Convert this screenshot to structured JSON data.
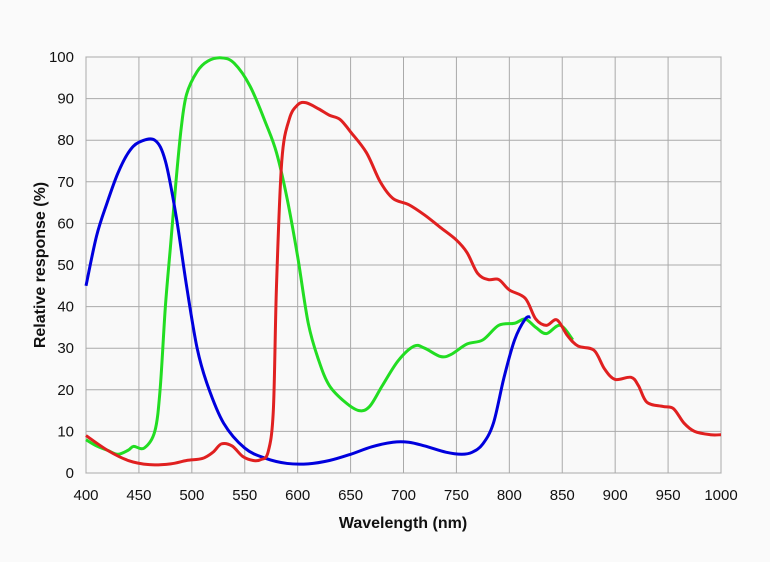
{
  "chart_data": {
    "type": "line",
    "title": "",
    "xlabel": "Wavelength (nm)",
    "ylabel": "Relative response (%)",
    "xlim": [
      400,
      1000
    ],
    "ylim": [
      0,
      100
    ],
    "xticks": [
      "400",
      "450",
      "500",
      "550",
      "600",
      "650",
      "700",
      "750",
      "800",
      "850",
      "900",
      "950",
      "1000"
    ],
    "yticks": [
      "0",
      "10",
      "20",
      "30",
      "40",
      "50",
      "60",
      "70",
      "80",
      "90",
      "100"
    ],
    "grid": true,
    "legend": "none",
    "series": [
      {
        "color": "#0000dd",
        "x": [
          400,
          410,
          420,
          430,
          440,
          450,
          465,
          475,
          485,
          495,
          505,
          515,
          530,
          550,
          570,
          590,
          610,
          630,
          650,
          670,
          690,
          705,
          720,
          740,
          755,
          765,
          775,
          785,
          795,
          805,
          815,
          820
        ],
        "y": [
          45,
          57,
          65,
          72,
          77,
          79.5,
          80,
          75,
          62,
          45,
          30,
          21,
          12,
          6,
          3.5,
          2.3,
          2.2,
          3,
          4.5,
          6.3,
          7.4,
          7.4,
          6.5,
          5,
          4.5,
          5,
          7,
          12,
          23,
          32,
          37,
          37.5
        ]
      },
      {
        "color": "#22dd22",
        "x": [
          400,
          410,
          420,
          430,
          440,
          445,
          455,
          465,
          470,
          475,
          480,
          485,
          490,
          495,
          505,
          515,
          528,
          540,
          555,
          570,
          580,
          590,
          600,
          610,
          620,
          630,
          645,
          658,
          668,
          680,
          695,
          710,
          720,
          735,
          745,
          760,
          775,
          790,
          805,
          815,
          825,
          835,
          848,
          860
        ],
        "y": [
          8,
          6.5,
          5.5,
          4.5,
          5.5,
          6.4,
          6,
          10,
          20,
          40,
          55,
          70,
          83,
          91,
          96.5,
          99,
          99.8,
          98.5,
          93,
          84,
          77,
          66,
          52,
          36,
          27,
          21,
          17,
          15,
          16,
          21,
          27,
          30.5,
          30,
          28,
          28.5,
          31,
          32,
          35.5,
          36,
          37,
          35,
          33.5,
          35.5,
          32
        ]
      },
      {
        "color": "#e02020",
        "x": [
          400,
          420,
          440,
          460,
          480,
          495,
          510,
          520,
          528,
          538,
          548,
          558,
          565,
          572,
          577,
          580,
          585,
          592,
          600,
          608,
          620,
          630,
          640,
          650,
          665,
          678,
          690,
          705,
          720,
          735,
          750,
          760,
          770,
          780,
          790,
          800,
          815,
          825,
          835,
          845,
          855,
          865,
          880,
          890,
          900,
          915,
          922,
          930,
          945,
          955,
          965,
          975,
          990,
          1000
        ],
        "y": [
          9,
          5.5,
          3,
          2,
          2.2,
          3,
          3.5,
          5,
          7,
          6.5,
          4,
          3,
          3.2,
          5,
          15,
          45,
          75,
          85,
          88.5,
          89,
          87.5,
          86,
          85,
          82,
          77,
          70,
          66,
          64.5,
          62,
          59,
          56,
          53,
          48,
          46.5,
          46.5,
          44,
          42,
          37,
          35.5,
          36.8,
          33,
          30.5,
          29.5,
          25,
          22.5,
          23,
          21,
          17,
          16,
          15.5,
          12,
          10,
          9.2,
          9.2
        ]
      }
    ]
  }
}
